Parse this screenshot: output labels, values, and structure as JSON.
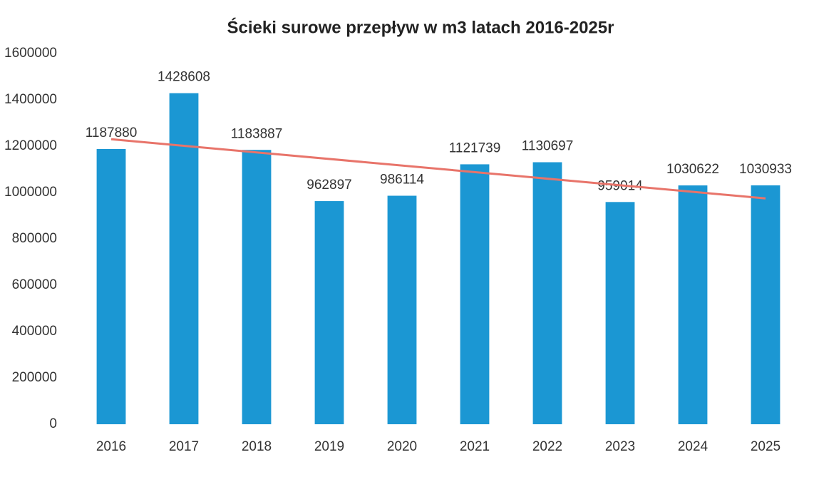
{
  "chart_data": {
    "type": "bar",
    "title": "Ścieki surowe  przepływ  w m3 latach 2016-2025r",
    "categories": [
      "2016",
      "2017",
      "2018",
      "2019",
      "2020",
      "2021",
      "2022",
      "2023",
      "2024",
      "2025"
    ],
    "values": [
      1187880,
      1428608,
      1183887,
      962897,
      986114,
      1121739,
      1130697,
      959014,
      1030622,
      1030933
    ],
    "color": "#1b97d3",
    "trendline": true,
    "trendline_color": "#e8746a",
    "ylim": [
      0,
      1600000
    ],
    "yticks": [
      0,
      200000,
      400000,
      600000,
      800000,
      1000000,
      1200000,
      1400000,
      1600000
    ],
    "grid": false
  }
}
